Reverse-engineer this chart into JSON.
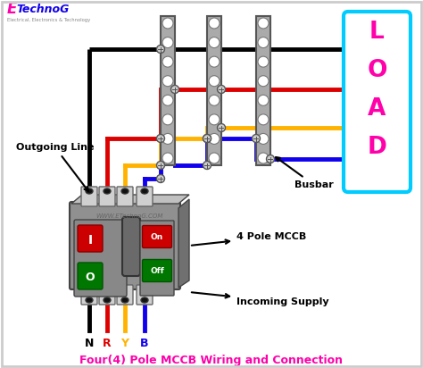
{
  "title": "Four(4) Pole MCCB Wiring and Connection",
  "title_color": "#FF00AA",
  "bg_color": "#ffffff",
  "wire_colors": [
    "black",
    "#DD0000",
    "#FFB300",
    "#1100EE"
  ],
  "wire_labels": [
    "N",
    "R",
    "Y",
    "B"
  ],
  "wire_label_colors": [
    "black",
    "#DD0000",
    "#FFB300",
    "#1100EE"
  ],
  "mccb_label": "4 Pole MCCB",
  "load_label": "LOAD",
  "load_color": "#FF00AA",
  "load_box_color": "#00CCFF",
  "busbar_label": "Busbar",
  "outgoing_label": "Outgoing Line",
  "incoming_label": "Incoming Supply",
  "watermark": "WWW.ETechnoG.COM",
  "logo_e_color": "#FF00AA",
  "logo_technog_color": "#1100EE",
  "logo_sub_color": "#888888"
}
